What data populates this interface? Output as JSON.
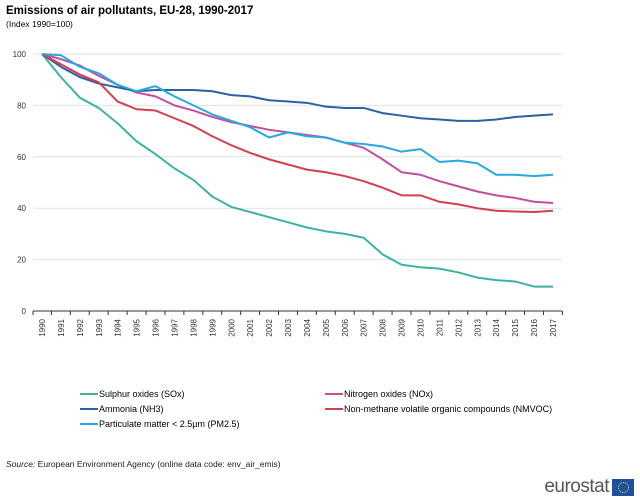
{
  "chart_data": {
    "type": "line",
    "title": "Emissions of air pollutants, EU-28, 1990-2017",
    "subtitle": "(Index 1990=100)",
    "xlabel": "",
    "ylabel": "",
    "ylim": [
      0,
      100
    ],
    "yticks": [
      0,
      20,
      40,
      60,
      80,
      100
    ],
    "grid": true,
    "legend_placement": "bottom",
    "x": [
      "1990",
      "1991",
      "1992",
      "1993",
      "1994",
      "1995",
      "1996",
      "1997",
      "1998",
      "1999",
      "2000",
      "2001",
      "2002",
      "2003",
      "2004",
      "2005",
      "2006",
      "2007",
      "2008",
      "2009",
      "2010",
      "2011",
      "2012",
      "2013",
      "2014",
      "2015",
      "2016",
      "2017"
    ],
    "series": [
      {
        "name": "Sulphur oxides (SOx)",
        "color": "#3bb3a3",
        "values": [
          100,
          91,
          83,
          79,
          73,
          66,
          61,
          55.5,
          51,
          44.5,
          40.5,
          38.5,
          36.5,
          34.5,
          32.5,
          31,
          30,
          28.5,
          22,
          18,
          17,
          16.5,
          15,
          13,
          12,
          11.5,
          9.5,
          9.5
        ]
      },
      {
        "name": "Nitrogen oxides (NOx)",
        "color": "#c54d9f",
        "values": [
          100,
          98,
          95.5,
          91.5,
          88,
          85,
          83.5,
          80,
          78,
          75.5,
          73.5,
          72,
          70.5,
          69.5,
          68.5,
          67.5,
          65.5,
          63.5,
          59,
          54,
          53,
          50.5,
          48.5,
          46.5,
          45,
          44,
          42.5,
          42
        ]
      },
      {
        "name": "Ammonia (NH3)",
        "color": "#2f5fa7",
        "values": [
          100,
          95,
          91,
          88.5,
          87,
          85.5,
          86,
          86,
          86,
          85.5,
          84,
          83.5,
          82,
          81.5,
          81,
          79.5,
          79,
          79,
          77,
          76,
          75,
          74.5,
          74,
          74,
          74.5,
          75.5,
          76,
          76.5
        ]
      },
      {
        "name": "Non-methane volatile organic compounds (NMVOC)",
        "color": "#d2404f",
        "values": [
          100,
          96,
          92,
          89,
          81.5,
          78.5,
          78,
          75,
          72,
          68,
          64.5,
          61.5,
          59,
          57,
          55,
          54,
          52.5,
          50.5,
          48,
          45,
          45,
          42.5,
          41.5,
          40,
          39,
          38.7,
          38.5,
          39
        ]
      },
      {
        "name": "Particulate matter < 2.5µm (PM2.5)",
        "color": "#27a9e1",
        "values": [
          100,
          99.5,
          95,
          92.5,
          88,
          85.5,
          87.5,
          83.5,
          80,
          76.5,
          74,
          71.5,
          67.5,
          69.5,
          68,
          67.5,
          65.5,
          65,
          64,
          62,
          63,
          58,
          58.5,
          57.5,
          53,
          53,
          52.5,
          53
        ]
      }
    ]
  },
  "source": {
    "label": "Source:",
    "text": "European Environment Agency (online data code: env_air_emis)"
  },
  "logo": {
    "text": "eurostat"
  }
}
